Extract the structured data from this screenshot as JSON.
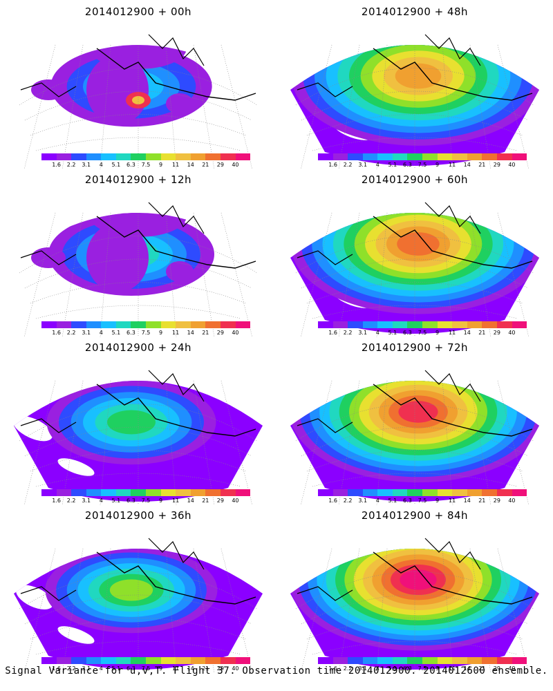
{
  "panels": [
    {
      "title": "2014012900  + 00h",
      "level": 0
    },
    {
      "title": "2014012900  + 48h",
      "level": 4
    },
    {
      "title": "2014012900  + 12h",
      "level": 1
    },
    {
      "title": "2014012900  + 60h",
      "level": 5
    },
    {
      "title": "2014012900  + 24h",
      "level": 2
    },
    {
      "title": "2014012900  + 72h",
      "level": 6
    },
    {
      "title": "2014012900  + 36h",
      "level": 3
    },
    {
      "title": "2014012900  + 84h",
      "level": 7
    }
  ],
  "colorbar": {
    "labels": [
      "1.6",
      "2.2",
      "3.1",
      "4",
      "5.1",
      "6.3",
      "7.5",
      "9",
      "11",
      "14",
      "21",
      "29",
      "40"
    ],
    "colors": [
      "#8b00ff",
      "#9a20e0",
      "#2e4bff",
      "#1f8fff",
      "#18c0ff",
      "#20d8c0",
      "#1fd060",
      "#8fe02a",
      "#e8e030",
      "#f0c040",
      "#f0a030",
      "#f07030",
      "#f03050",
      "#f0107a"
    ]
  },
  "footer": "Signal Variance for u,v,T. Flight 37. Observation time 2014012900. 2014012600 ensemble."
}
